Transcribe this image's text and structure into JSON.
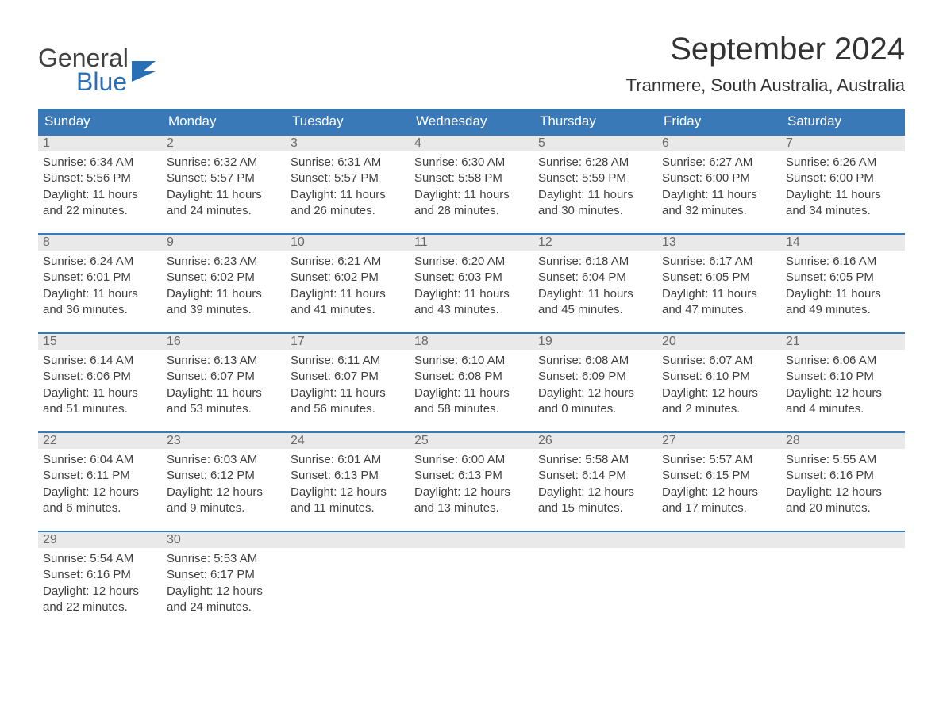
{
  "logo": {
    "top": "General",
    "bottom": "Blue",
    "text_color_top": "#404040",
    "text_color_bottom": "#2a6fb5",
    "icon_color": "#2a6fb5"
  },
  "title": "September 2024",
  "location": "Tranmere, South Australia, Australia",
  "colors": {
    "header_bg": "#3a79b7",
    "header_text": "#ffffff",
    "daynum_bg": "#e9e9e9",
    "daynum_text": "#6a6a6a",
    "body_text": "#404040",
    "rule": "#3a79b7",
    "page_bg": "#ffffff"
  },
  "typography": {
    "title_fontsize": 40,
    "location_fontsize": 22,
    "weekday_fontsize": 17,
    "daynum_fontsize": 16,
    "body_fontsize": 15
  },
  "weekdays": [
    "Sunday",
    "Monday",
    "Tuesday",
    "Wednesday",
    "Thursday",
    "Friday",
    "Saturday"
  ],
  "weeks": [
    [
      {
        "n": "1",
        "sunrise": "Sunrise: 6:34 AM",
        "sunset": "Sunset: 5:56 PM",
        "d1": "Daylight: 11 hours",
        "d2": "and 22 minutes."
      },
      {
        "n": "2",
        "sunrise": "Sunrise: 6:32 AM",
        "sunset": "Sunset: 5:57 PM",
        "d1": "Daylight: 11 hours",
        "d2": "and 24 minutes."
      },
      {
        "n": "3",
        "sunrise": "Sunrise: 6:31 AM",
        "sunset": "Sunset: 5:57 PM",
        "d1": "Daylight: 11 hours",
        "d2": "and 26 minutes."
      },
      {
        "n": "4",
        "sunrise": "Sunrise: 6:30 AM",
        "sunset": "Sunset: 5:58 PM",
        "d1": "Daylight: 11 hours",
        "d2": "and 28 minutes."
      },
      {
        "n": "5",
        "sunrise": "Sunrise: 6:28 AM",
        "sunset": "Sunset: 5:59 PM",
        "d1": "Daylight: 11 hours",
        "d2": "and 30 minutes."
      },
      {
        "n": "6",
        "sunrise": "Sunrise: 6:27 AM",
        "sunset": "Sunset: 6:00 PM",
        "d1": "Daylight: 11 hours",
        "d2": "and 32 minutes."
      },
      {
        "n": "7",
        "sunrise": "Sunrise: 6:26 AM",
        "sunset": "Sunset: 6:00 PM",
        "d1": "Daylight: 11 hours",
        "d2": "and 34 minutes."
      }
    ],
    [
      {
        "n": "8",
        "sunrise": "Sunrise: 6:24 AM",
        "sunset": "Sunset: 6:01 PM",
        "d1": "Daylight: 11 hours",
        "d2": "and 36 minutes."
      },
      {
        "n": "9",
        "sunrise": "Sunrise: 6:23 AM",
        "sunset": "Sunset: 6:02 PM",
        "d1": "Daylight: 11 hours",
        "d2": "and 39 minutes."
      },
      {
        "n": "10",
        "sunrise": "Sunrise: 6:21 AM",
        "sunset": "Sunset: 6:02 PM",
        "d1": "Daylight: 11 hours",
        "d2": "and 41 minutes."
      },
      {
        "n": "11",
        "sunrise": "Sunrise: 6:20 AM",
        "sunset": "Sunset: 6:03 PM",
        "d1": "Daylight: 11 hours",
        "d2": "and 43 minutes."
      },
      {
        "n": "12",
        "sunrise": "Sunrise: 6:18 AM",
        "sunset": "Sunset: 6:04 PM",
        "d1": "Daylight: 11 hours",
        "d2": "and 45 minutes."
      },
      {
        "n": "13",
        "sunrise": "Sunrise: 6:17 AM",
        "sunset": "Sunset: 6:05 PM",
        "d1": "Daylight: 11 hours",
        "d2": "and 47 minutes."
      },
      {
        "n": "14",
        "sunrise": "Sunrise: 6:16 AM",
        "sunset": "Sunset: 6:05 PM",
        "d1": "Daylight: 11 hours",
        "d2": "and 49 minutes."
      }
    ],
    [
      {
        "n": "15",
        "sunrise": "Sunrise: 6:14 AM",
        "sunset": "Sunset: 6:06 PM",
        "d1": "Daylight: 11 hours",
        "d2": "and 51 minutes."
      },
      {
        "n": "16",
        "sunrise": "Sunrise: 6:13 AM",
        "sunset": "Sunset: 6:07 PM",
        "d1": "Daylight: 11 hours",
        "d2": "and 53 minutes."
      },
      {
        "n": "17",
        "sunrise": "Sunrise: 6:11 AM",
        "sunset": "Sunset: 6:07 PM",
        "d1": "Daylight: 11 hours",
        "d2": "and 56 minutes."
      },
      {
        "n": "18",
        "sunrise": "Sunrise: 6:10 AM",
        "sunset": "Sunset: 6:08 PM",
        "d1": "Daylight: 11 hours",
        "d2": "and 58 minutes."
      },
      {
        "n": "19",
        "sunrise": "Sunrise: 6:08 AM",
        "sunset": "Sunset: 6:09 PM",
        "d1": "Daylight: 12 hours",
        "d2": "and 0 minutes."
      },
      {
        "n": "20",
        "sunrise": "Sunrise: 6:07 AM",
        "sunset": "Sunset: 6:10 PM",
        "d1": "Daylight: 12 hours",
        "d2": "and 2 minutes."
      },
      {
        "n": "21",
        "sunrise": "Sunrise: 6:06 AM",
        "sunset": "Sunset: 6:10 PM",
        "d1": "Daylight: 12 hours",
        "d2": "and 4 minutes."
      }
    ],
    [
      {
        "n": "22",
        "sunrise": "Sunrise: 6:04 AM",
        "sunset": "Sunset: 6:11 PM",
        "d1": "Daylight: 12 hours",
        "d2": "and 6 minutes."
      },
      {
        "n": "23",
        "sunrise": "Sunrise: 6:03 AM",
        "sunset": "Sunset: 6:12 PM",
        "d1": "Daylight: 12 hours",
        "d2": "and 9 minutes."
      },
      {
        "n": "24",
        "sunrise": "Sunrise: 6:01 AM",
        "sunset": "Sunset: 6:13 PM",
        "d1": "Daylight: 12 hours",
        "d2": "and 11 minutes."
      },
      {
        "n": "25",
        "sunrise": "Sunrise: 6:00 AM",
        "sunset": "Sunset: 6:13 PM",
        "d1": "Daylight: 12 hours",
        "d2": "and 13 minutes."
      },
      {
        "n": "26",
        "sunrise": "Sunrise: 5:58 AM",
        "sunset": "Sunset: 6:14 PM",
        "d1": "Daylight: 12 hours",
        "d2": "and 15 minutes."
      },
      {
        "n": "27",
        "sunrise": "Sunrise: 5:57 AM",
        "sunset": "Sunset: 6:15 PM",
        "d1": "Daylight: 12 hours",
        "d2": "and 17 minutes."
      },
      {
        "n": "28",
        "sunrise": "Sunrise: 5:55 AM",
        "sunset": "Sunset: 6:16 PM",
        "d1": "Daylight: 12 hours",
        "d2": "and 20 minutes."
      }
    ],
    [
      {
        "n": "29",
        "sunrise": "Sunrise: 5:54 AM",
        "sunset": "Sunset: 6:16 PM",
        "d1": "Daylight: 12 hours",
        "d2": "and 22 minutes."
      },
      {
        "n": "30",
        "sunrise": "Sunrise: 5:53 AM",
        "sunset": "Sunset: 6:17 PM",
        "d1": "Daylight: 12 hours",
        "d2": "and 24 minutes."
      },
      {
        "empty": true
      },
      {
        "empty": true
      },
      {
        "empty": true
      },
      {
        "empty": true
      },
      {
        "empty": true
      }
    ]
  ]
}
